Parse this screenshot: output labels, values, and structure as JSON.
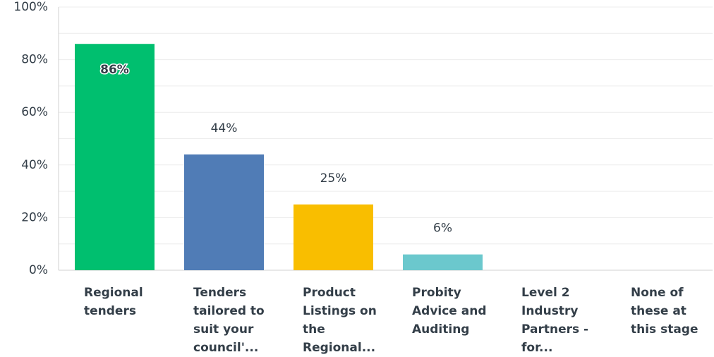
{
  "chart_data": {
    "type": "bar",
    "categories": [
      "Regional tenders",
      "Tenders tailored to suit your council'...",
      "Product Listings on the Regional...",
      "Probity Advice and Auditing",
      "Level 2 Industry Partners - for...",
      "None of these at this stage"
    ],
    "values": [
      86,
      44,
      25,
      6,
      0,
      0
    ],
    "value_labels": [
      "86%",
      "44%",
      "25%",
      "6%",
      null,
      null
    ],
    "colors": [
      "#00bf6f",
      "#507cb6",
      "#f9be00",
      "#6bc8cd",
      "#999999",
      "#999999"
    ],
    "ylim": [
      0,
      100
    ],
    "yticks": [
      {
        "value": 0,
        "label": "0%"
      },
      {
        "value": 20,
        "label": "20%"
      },
      {
        "value": 40,
        "label": "40%"
      },
      {
        "value": 60,
        "label": "60%"
      },
      {
        "value": 80,
        "label": "80%"
      },
      {
        "value": 100,
        "label": "100%"
      }
    ],
    "minor_yticks": [
      10,
      30,
      50,
      70,
      90
    ],
    "grid": true
  }
}
